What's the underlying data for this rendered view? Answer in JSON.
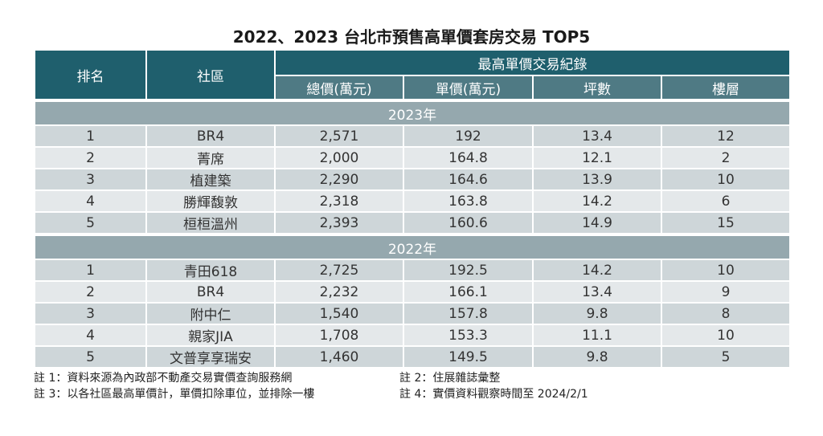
{
  "title": "2022、2023 台北市預售高單價套房交易 TOP5",
  "header": {
    "rank": "排名",
    "community": "社區",
    "group": "最高單價交易紀錄",
    "total": "總價(萬元)",
    "unit": "單價(萬元)",
    "area": "坪數",
    "floor": "樓層"
  },
  "sections": [
    {
      "label": "2023年",
      "rows": [
        [
          "1",
          "BR4",
          "2,571",
          "192",
          "13.4",
          "12"
        ],
        [
          "2",
          "菁席",
          "2,000",
          "164.8",
          "12.1",
          "2"
        ],
        [
          "3",
          "植建築",
          "2,290",
          "164.6",
          "13.9",
          "10"
        ],
        [
          "4",
          "勝輝馥敦",
          "2,318",
          "163.8",
          "14.2",
          "6"
        ],
        [
          "5",
          "桓桓溫州",
          "2,393",
          "160.6",
          "14.9",
          "15"
        ]
      ]
    },
    {
      "label": "2022年",
      "rows": [
        [
          "1",
          "青田618",
          "2,725",
          "192.5",
          "14.2",
          "10"
        ],
        [
          "2",
          "BR4",
          "2,232",
          "166.1",
          "13.4",
          "9"
        ],
        [
          "3",
          "附中仁",
          "1,540",
          "157.8",
          "9.8",
          "8"
        ],
        [
          "4",
          "親家JIA",
          "1,708",
          "153.3",
          "11.1",
          "10"
        ],
        [
          "5",
          "文普享享瑞安",
          "1,460",
          "149.5",
          "9.8",
          "5"
        ]
      ]
    }
  ],
  "notes": [
    "註 1：資料來源為內政部不動產交易實價查詢服務網",
    "註 2：住展雜誌彙整",
    "註 3：以各社區最高單價計，單價扣除車位，並排除一樓",
    "註 4：實價資料觀察時間至 2024/2/1"
  ],
  "colors": {
    "header": "#1f5f6d",
    "subheader": "#4f7a84",
    "section": "#95a8ae",
    "row_odd": "#ced6d9",
    "row_even": "#e4e8ea"
  }
}
